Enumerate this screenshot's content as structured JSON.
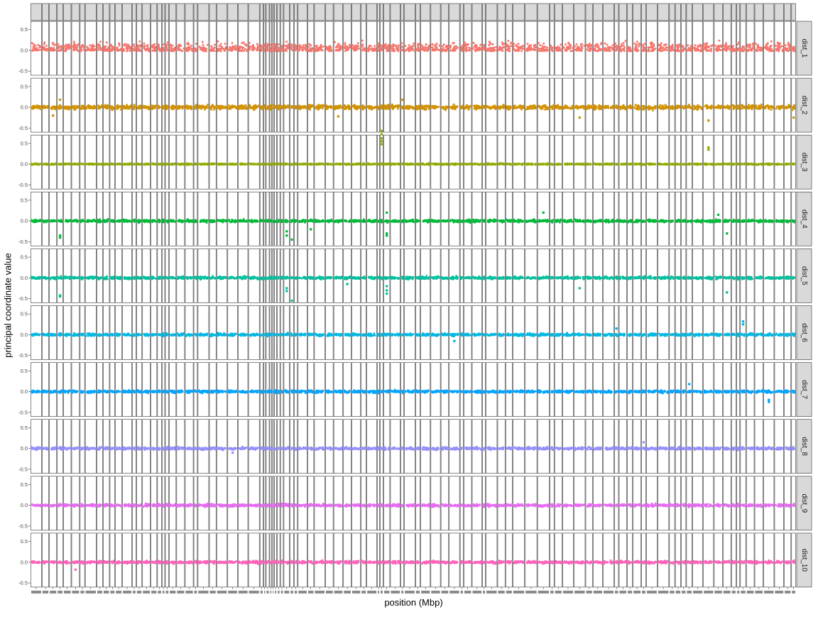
{
  "chart_data": {
    "type": "scatter",
    "xlabel": "position (Mbp)",
    "ylabel": "principal coordinate value",
    "ylim": [
      -0.6,
      0.7
    ],
    "yticks": [
      {
        "value": 0.5,
        "label": "0.5"
      },
      {
        "value": 0.0,
        "label": "0.0"
      },
      {
        "value": -0.5,
        "label": "-0.5"
      }
    ],
    "colors": [
      "#F8766D",
      "#D39200",
      "#93AA00",
      "#00BA38",
      "#00C19F",
      "#00B9E3",
      "#00A5FF",
      "#9590FF",
      "#E76BF3",
      "#FF62BC"
    ],
    "series": [
      {
        "name": "dist_1",
        "baseline": 0.05,
        "spread": 0.1,
        "upward_skew": true,
        "outliers": []
      },
      {
        "name": "dist_2",
        "baseline": 0.0,
        "spread": 0.05,
        "outliers": [
          {
            "col": 2,
            "y": -0.2
          },
          {
            "col": 3,
            "y": 0.18
          },
          {
            "col": 45,
            "y": -0.22
          },
          {
            "col": 54,
            "y": 0.18
          },
          {
            "col": 74,
            "y": -0.25
          },
          {
            "col": 90,
            "y": -0.32
          },
          {
            "col": 110,
            "y": -0.25
          }
        ]
      },
      {
        "name": "dist_3",
        "baseline": 0.0,
        "spread": 0.015,
        "outliers": [
          {
            "col": 51,
            "y": 0.8
          },
          {
            "col": 51,
            "y": 0.72
          },
          {
            "col": 51,
            "y": 0.62
          },
          {
            "col": 51,
            "y": 0.55
          },
          {
            "col": 51,
            "y": 0.48
          },
          {
            "col": 90,
            "y": 0.4
          },
          {
            "col": 90,
            "y": 0.35
          }
        ]
      },
      {
        "name": "dist_4",
        "baseline": 0.0,
        "spread": 0.03,
        "outliers": [
          {
            "col": 3,
            "y": -0.35
          },
          {
            "col": 3,
            "y": -0.4
          },
          {
            "col": 38,
            "y": -0.25
          },
          {
            "col": 38,
            "y": -0.35
          },
          {
            "col": 39,
            "y": -0.45
          },
          {
            "col": 42,
            "y": -0.2
          },
          {
            "col": 52,
            "y": 0.2
          },
          {
            "col": 52,
            "y": -0.3
          },
          {
            "col": 52,
            "y": -0.35
          },
          {
            "col": 70,
            "y": 0.2
          },
          {
            "col": 91,
            "y": 0.15
          },
          {
            "col": 92,
            "y": -0.3
          }
        ]
      },
      {
        "name": "dist_5",
        "baseline": 0.0,
        "spread": 0.03,
        "outliers": [
          {
            "col": 3,
            "y": -0.42
          },
          {
            "col": 3,
            "y": -0.45
          },
          {
            "col": 38,
            "y": -0.25
          },
          {
            "col": 38,
            "y": -0.32
          },
          {
            "col": 39,
            "y": -0.55
          },
          {
            "col": 46,
            "y": -0.15
          },
          {
            "col": 52,
            "y": -0.2
          },
          {
            "col": 52,
            "y": -0.3
          },
          {
            "col": 52,
            "y": -0.38
          },
          {
            "col": 74,
            "y": -0.25
          },
          {
            "col": 92,
            "y": -0.35
          }
        ]
      },
      {
        "name": "dist_6",
        "baseline": 0.0,
        "spread": 0.03,
        "outliers": [
          {
            "col": 95,
            "y": 0.32
          },
          {
            "col": 95,
            "y": 0.25
          },
          {
            "col": 78,
            "y": 0.15
          },
          {
            "col": 60,
            "y": -0.15
          }
        ]
      },
      {
        "name": "dist_7",
        "baseline": 0.0,
        "spread": 0.03,
        "outliers": [
          {
            "col": 98,
            "y": -0.2
          },
          {
            "col": 98,
            "y": -0.25
          },
          {
            "col": 88,
            "y": 0.18
          }
        ]
      },
      {
        "name": "dist_8",
        "baseline": 0.0,
        "spread": 0.03,
        "outliers": [
          {
            "col": 82,
            "y": 0.15
          },
          {
            "col": 27,
            "y": -0.1
          }
        ]
      },
      {
        "name": "dist_9",
        "baseline": 0.0,
        "spread": 0.03,
        "outliers": []
      },
      {
        "name": "dist_10",
        "baseline": 0.0,
        "spread": 0.03,
        "outliers": [
          {
            "col": 5,
            "y": -0.18
          }
        ]
      }
    ],
    "columns": 102,
    "grid": false,
    "legend": "none"
  }
}
